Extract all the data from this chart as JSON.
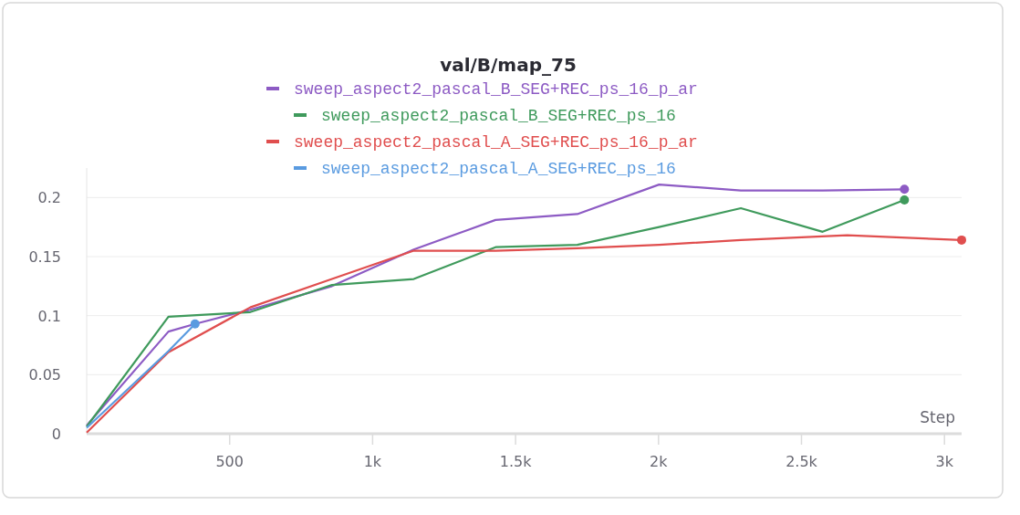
{
  "chart_data": {
    "type": "line",
    "title": "val/B/map_75",
    "xlabel": "Step",
    "xlim": [
      0,
      3060
    ],
    "xticks": [
      {
        "value": 500,
        "label": "500"
      },
      {
        "value": 1000,
        "label": "1k"
      },
      {
        "value": 1500,
        "label": "1.5k"
      },
      {
        "value": 2000,
        "label": "2k"
      },
      {
        "value": 2500,
        "label": "2.5k"
      },
      {
        "value": 3000,
        "label": "3k"
      }
    ],
    "ylim": [
      0,
      0.225
    ],
    "yticks": [
      0,
      0.05,
      0.1,
      0.15,
      0.2
    ],
    "grid": "y",
    "legend": "top",
    "series": [
      {
        "name": "sweep_aspect2_pascal_B_SEG+REC_ps_16_p_ar",
        "color": "#8d5bc4",
        "x": [
          0,
          286,
          379,
          572,
          858,
          1144,
          1430,
          1716,
          2002,
          2288,
          2574,
          2860
        ],
        "values": [
          0.007,
          0.0865,
          0.093,
          0.105,
          0.125,
          0.156,
          0.181,
          0.186,
          0.211,
          0.206,
          0.206,
          0.207
        ]
      },
      {
        "name": "sweep_aspect2_pascal_B_SEG+REC_ps_16",
        "color": "#3f9a5c",
        "x": [
          0,
          286,
          572,
          858,
          1144,
          1430,
          1716,
          2002,
          2288,
          2574,
          2860
        ],
        "values": [
          0.006,
          0.099,
          0.103,
          0.126,
          0.131,
          0.158,
          0.16,
          0.175,
          0.191,
          0.171,
          0.198
        ]
      },
      {
        "name": "sweep_aspect2_pascal_A_SEG+REC_ps_16_p_ar",
        "color": "#e04e4e",
        "x": [
          0,
          286,
          572,
          858,
          1144,
          1430,
          1716,
          2002,
          2288,
          2660,
          3060
        ],
        "values": [
          0.001,
          0.069,
          0.107,
          0.131,
          0.155,
          0.155,
          0.157,
          0.16,
          0.164,
          0.168,
          0.164
        ]
      },
      {
        "name": "sweep_aspect2_pascal_A_SEG+REC_ps_16",
        "color": "#5a9be0",
        "x": [
          0,
          286,
          379
        ],
        "values": [
          0.005,
          0.07,
          0.093
        ]
      }
    ]
  }
}
